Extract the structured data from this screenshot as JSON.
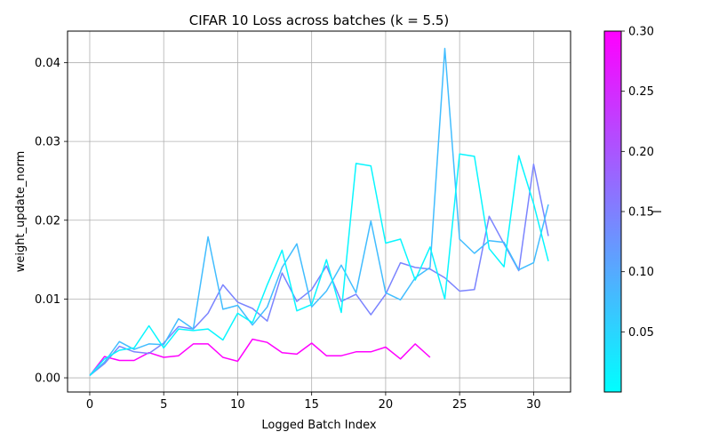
{
  "chart_data": {
    "type": "line",
    "title": "CIFAR 10 Loss across batches (k = 5.5)",
    "xlabel": "Logged Batch Index",
    "ylabel": "weight_update_norm",
    "xlim": [
      -1.5,
      32.5
    ],
    "ylim": [
      -0.0018,
      0.044
    ],
    "x_ticks": [
      0,
      5,
      10,
      15,
      20,
      25,
      30
    ],
    "y_ticks": [
      0.0,
      0.01,
      0.02,
      0.03,
      0.04
    ],
    "y_tick_labels": [
      "0.00",
      "0.01",
      "0.02",
      "0.03",
      "0.04"
    ],
    "grid": true,
    "colorbar": {
      "label": "l",
      "range": [
        0.0,
        0.3
      ],
      "ticks": [
        0.05,
        0.1,
        0.15,
        0.2,
        0.25,
        0.3
      ],
      "tick_labels": [
        "0.05",
        "0.10",
        "0.15",
        "0.20",
        "0.25",
        "0.30"
      ],
      "colormap": "cool",
      "color_low": "#00ffff",
      "color_high": "#ff00ff"
    },
    "series": [
      {
        "l": 0.3,
        "color": "#ff00ff",
        "x": [
          0,
          1,
          2,
          3,
          4,
          5,
          6,
          7,
          8,
          9,
          10,
          11,
          12,
          13,
          14,
          15,
          16,
          17,
          18,
          19,
          20,
          21,
          22,
          23
        ],
        "values": [
          0.0003,
          0.0027,
          0.0022,
          0.0022,
          0.0032,
          0.0026,
          0.0028,
          0.0043,
          0.0043,
          0.0026,
          0.0021,
          0.0049,
          0.0045,
          0.0032,
          0.003,
          0.0044,
          0.0028,
          0.0028,
          0.0033,
          0.0033,
          0.0039,
          0.0024,
          0.0043,
          0.0026
        ]
      },
      {
        "l": 0.14,
        "color": "#7b84ff",
        "x": [
          0,
          1,
          2,
          3,
          4,
          5,
          6,
          7,
          8,
          9,
          10,
          11,
          12,
          13,
          14,
          15,
          16,
          17,
          18,
          19,
          20,
          21,
          22,
          23,
          24,
          25,
          26,
          27,
          28,
          29,
          30,
          31
        ],
        "values": [
          0.0003,
          0.0018,
          0.004,
          0.0033,
          0.0031,
          0.0044,
          0.0065,
          0.0062,
          0.0082,
          0.0118,
          0.0096,
          0.0088,
          0.0072,
          0.0133,
          0.0097,
          0.0112,
          0.0142,
          0.0097,
          0.0106,
          0.008,
          0.0106,
          0.0146,
          0.014,
          0.0138,
          0.0127,
          0.011,
          0.0112,
          0.0205,
          0.017,
          0.0136,
          0.0271,
          0.018
        ]
      },
      {
        "l": 0.09,
        "color": "#42bdff",
        "x": [
          0,
          1,
          2,
          3,
          4,
          5,
          6,
          7,
          8,
          9,
          10,
          11,
          12,
          13,
          14,
          15,
          16,
          17,
          18,
          19,
          20,
          21,
          22,
          23,
          24,
          25,
          26,
          27,
          28,
          29,
          30,
          31
        ],
        "values": [
          0.0003,
          0.002,
          0.0046,
          0.0036,
          0.0043,
          0.0042,
          0.0075,
          0.0062,
          0.0179,
          0.0087,
          0.0092,
          0.0067,
          0.009,
          0.014,
          0.017,
          0.009,
          0.011,
          0.0143,
          0.0108,
          0.0199,
          0.0108,
          0.0099,
          0.0127,
          0.014,
          0.0418,
          0.0176,
          0.0158,
          0.0174,
          0.0172,
          0.0137,
          0.0146,
          0.022
        ]
      },
      {
        "l": 0.02,
        "color": "#09f6ff",
        "x": [
          0,
          1,
          2,
          3,
          4,
          5,
          6,
          7,
          8,
          9,
          10,
          11,
          12,
          13,
          14,
          15,
          16,
          17,
          18,
          19,
          20,
          21,
          22,
          23,
          24,
          25,
          26,
          27,
          28,
          29,
          30,
          31
        ],
        "values": [
          0.0003,
          0.0024,
          0.0035,
          0.0038,
          0.0066,
          0.0038,
          0.0062,
          0.006,
          0.0062,
          0.0048,
          0.0082,
          0.007,
          0.0118,
          0.0162,
          0.0085,
          0.0093,
          0.015,
          0.0083,
          0.0272,
          0.0269,
          0.0171,
          0.0176,
          0.0124,
          0.0166,
          0.01,
          0.0284,
          0.0281,
          0.0164,
          0.0141,
          0.0282,
          0.0221,
          0.0148
        ]
      }
    ]
  }
}
